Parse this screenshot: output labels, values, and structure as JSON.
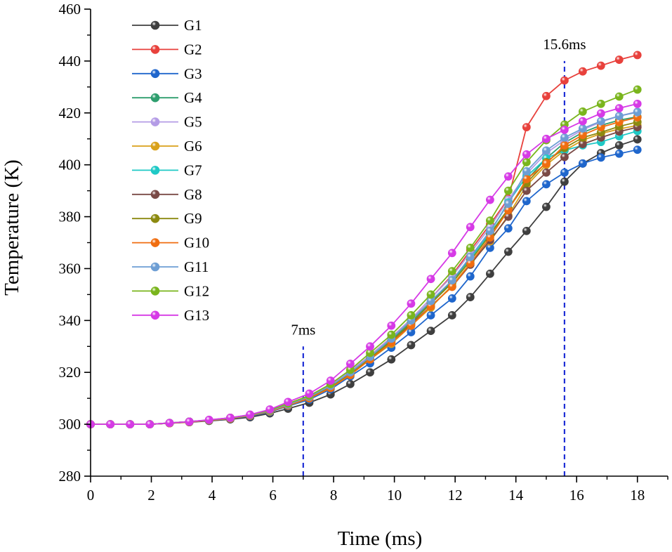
{
  "chart_data": {
    "type": "line",
    "xlabel": "Time (ms)",
    "ylabel": "Temperature (K)",
    "xlim": [
      0,
      19
    ],
    "ylim": [
      280,
      460
    ],
    "xticks": [
      0,
      2,
      4,
      6,
      8,
      10,
      12,
      14,
      16,
      18
    ],
    "yticks": [
      280,
      300,
      320,
      340,
      360,
      380,
      400,
      420,
      440,
      460
    ],
    "x": [
      0,
      0.65,
      1.3,
      1.95,
      2.6,
      3.25,
      3.9,
      4.6,
      5.25,
      5.9,
      6.5,
      7.2,
      7.9,
      8.55,
      9.2,
      9.9,
      10.55,
      11.2,
      11.9,
      12.5,
      13.15,
      13.75,
      14.35,
      15.0,
      15.6,
      16.2,
      16.8,
      17.4,
      18.0
    ],
    "series": [
      {
        "name": "G1",
        "color": "#3f3f3f",
        "values": [
          300,
          300,
          300,
          300,
          300.4,
          300.8,
          301.3,
          301.9,
          302.7,
          304.2,
          306.0,
          308.3,
          311.5,
          315.5,
          320.0,
          325.0,
          330.5,
          336.0,
          342.0,
          349.0,
          358.0,
          366.5,
          374.5,
          383.8,
          393.5,
          400.5,
          404.5,
          407.5,
          409.8
        ]
      },
      {
        "name": "G2",
        "color": "#e8413c",
        "values": [
          300,
          300,
          300,
          300,
          300.5,
          301.0,
          301.6,
          302.5,
          303.6,
          305.3,
          307.8,
          310.8,
          315.0,
          320.5,
          326.5,
          333.5,
          340.5,
          348.5,
          357.5,
          367.0,
          377.0,
          387.0,
          414.5,
          426.5,
          432.5,
          436.0,
          438.2,
          440.5,
          442.3
        ]
      },
      {
        "name": "G3",
        "color": "#1f66cc",
        "values": [
          300,
          300,
          300,
          300,
          300.4,
          300.9,
          301.4,
          302.1,
          303.1,
          304.7,
          307.0,
          309.5,
          313.5,
          318.5,
          323.5,
          329.5,
          335.5,
          342.0,
          348.5,
          357.0,
          368.0,
          375.5,
          386.0,
          392.5,
          397.0,
          400.5,
          402.8,
          404.3,
          405.8
        ]
      },
      {
        "name": "G4",
        "color": "#2e9e6e",
        "values": [
          300,
          300,
          300,
          300,
          300.5,
          301.0,
          301.6,
          302.4,
          303.5,
          305.2,
          307.6,
          310.5,
          314.8,
          320.0,
          326.0,
          332.5,
          339.5,
          347.0,
          355.0,
          364.0,
          373.5,
          383.0,
          394.0,
          402.5,
          408.5,
          412.5,
          415.2,
          417.2,
          418.5
        ]
      },
      {
        "name": "G5",
        "color": "#b49ce6",
        "values": [
          300,
          300,
          300,
          300,
          300.5,
          301.0,
          301.6,
          302.4,
          303.5,
          305.3,
          307.8,
          310.8,
          315.0,
          320.5,
          326.5,
          333.5,
          340.5,
          348.5,
          357.0,
          366.0,
          376.0,
          386.5,
          396.5,
          404.5,
          409.5,
          413.5,
          416.5,
          418.8,
          420.5
        ]
      },
      {
        "name": "G6",
        "color": "#d9a11a",
        "values": [
          300,
          300,
          300,
          300,
          300.4,
          300.9,
          301.5,
          302.2,
          303.3,
          304.9,
          307.2,
          310.0,
          314.0,
          319.0,
          325.0,
          331.0,
          338.0,
          345.0,
          353.5,
          362.0,
          370.5,
          380.5,
          392.0,
          400.0,
          405.5,
          409.5,
          412.0,
          413.8,
          415.2
        ]
      },
      {
        "name": "G7",
        "color": "#1fc9c6",
        "values": [
          300,
          300,
          300,
          300,
          300.4,
          301.0,
          301.5,
          302.3,
          303.4,
          305.0,
          307.4,
          310.3,
          314.5,
          319.5,
          325.5,
          332.0,
          339.0,
          346.5,
          354.5,
          363.5,
          374.0,
          385.5,
          395.5,
          402.5,
          405.5,
          407.5,
          408.8,
          411.0,
          413.0
        ]
      },
      {
        "name": "G8",
        "color": "#7a4a46",
        "values": [
          300,
          300,
          300,
          300,
          300.4,
          300.9,
          301.5,
          302.3,
          303.3,
          305.0,
          307.3,
          310.1,
          314.2,
          319.2,
          325.0,
          331.5,
          338.5,
          345.5,
          353.0,
          361.5,
          371.0,
          380.0,
          390.0,
          397.0,
          403.0,
          408.0,
          410.5,
          412.8,
          414.5
        ]
      },
      {
        "name": "G9",
        "color": "#8c8a10",
        "values": [
          300,
          300,
          300,
          300,
          300.4,
          301.0,
          301.5,
          302.3,
          303.4,
          305.1,
          307.5,
          310.3,
          314.5,
          319.5,
          325.5,
          332.0,
          339.0,
          346.5,
          354.5,
          363.0,
          373.0,
          383.0,
          393.0,
          401.0,
          406.5,
          410.5,
          412.5,
          414.8,
          416.5
        ]
      },
      {
        "name": "G10",
        "color": "#f06d10",
        "values": [
          300,
          300,
          300,
          300,
          300.4,
          300.9,
          301.5,
          302.2,
          303.3,
          305.0,
          307.3,
          310.0,
          314.0,
          319.0,
          325.0,
          331.5,
          338.0,
          345.5,
          353.0,
          362.0,
          372.0,
          382.5,
          394.5,
          400.5,
          407.5,
          411.5,
          414.5,
          416.5,
          418.3
        ]
      },
      {
        "name": "G11",
        "color": "#6d9ed4",
        "values": [
          300,
          300,
          300,
          300,
          300.5,
          301.0,
          301.6,
          302.4,
          303.5,
          305.2,
          307.6,
          310.6,
          314.8,
          320.0,
          326.0,
          333.0,
          340.0,
          347.5,
          355.5,
          364.5,
          374.5,
          385.0,
          397.5,
          405.5,
          410.5,
          414.0,
          416.8,
          418.8,
          420.3
        ]
      },
      {
        "name": "G12",
        "color": "#7ab51d",
        "values": [
          300,
          300,
          300,
          300,
          300.5,
          301.0,
          301.6,
          302.5,
          303.6,
          305.4,
          308.0,
          311.0,
          315.5,
          321.0,
          327.5,
          334.5,
          342.0,
          350.0,
          359.0,
          368.0,
          378.5,
          390.0,
          401.0,
          409.5,
          415.5,
          420.5,
          423.5,
          426.3,
          429.0
        ]
      },
      {
        "name": "G13",
        "color": "#d63ae6",
        "values": [
          300,
          300,
          300,
          300,
          300.5,
          301.0,
          301.7,
          302.5,
          303.7,
          305.7,
          308.6,
          311.8,
          316.8,
          323.3,
          330.0,
          338.0,
          346.5,
          356.0,
          366.0,
          376.0,
          386.5,
          395.5,
          404.0,
          410.0,
          413.5,
          416.8,
          419.8,
          421.8,
          423.5
        ]
      }
    ],
    "annotations": [
      {
        "label": "7ms",
        "x": 7.0,
        "y_from": 280,
        "y_to": 330,
        "color": "#1f2fd6"
      },
      {
        "label": "15.6ms",
        "x": 15.6,
        "y_from": 280,
        "y_to": 440,
        "color": "#1f2fd6"
      }
    ],
    "legend_position": "top-left",
    "grid": false
  }
}
